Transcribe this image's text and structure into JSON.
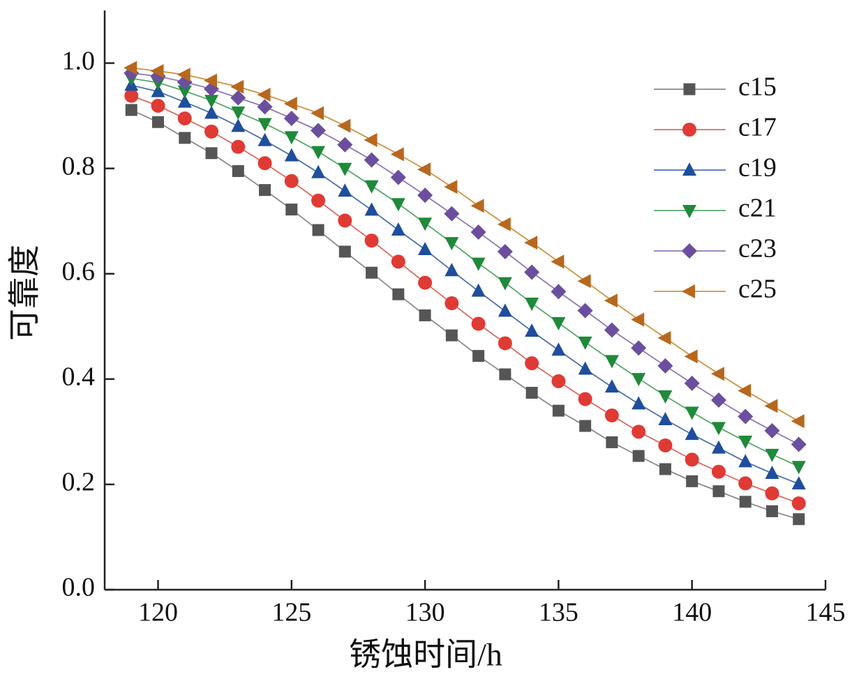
{
  "chart_data": {
    "type": "line",
    "x_label": "锈蚀时间/h",
    "y_label": "可靠度",
    "x": [
      119,
      120,
      121,
      122,
      123,
      124,
      125,
      126,
      127,
      128,
      129,
      130,
      131,
      132,
      133,
      134,
      135,
      136,
      137,
      138,
      139,
      140,
      141,
      142,
      143,
      144
    ],
    "xlim": [
      118,
      145
    ],
    "xticks": [
      120,
      125,
      130,
      135,
      140,
      145
    ],
    "ylim": [
      0,
      1.1
    ],
    "yticks": [
      {
        "value": 0,
        "label": "0.0"
      },
      0.2,
      0.4,
      0.6,
      0.8,
      {
        "value": 1,
        "label": "1.0"
      }
    ],
    "legend": "upper right",
    "series": [
      {
        "name": "c15",
        "color": "#555555",
        "line_color": "#8a8a8a",
        "marker": "square",
        "values": [
          0.911,
          0.888,
          0.858,
          0.829,
          0.795,
          0.759,
          0.722,
          0.683,
          0.642,
          0.602,
          0.561,
          0.521,
          0.483,
          0.444,
          0.409,
          0.374,
          0.34,
          0.311,
          0.28,
          0.254,
          0.229,
          0.206,
          0.187,
          0.167,
          0.149,
          0.134
        ]
      },
      {
        "name": "c17",
        "color": "#e03a35",
        "line_color": "#e06a60",
        "marker": "circle",
        "values": [
          0.938,
          0.919,
          0.895,
          0.87,
          0.841,
          0.81,
          0.776,
          0.739,
          0.701,
          0.663,
          0.623,
          0.583,
          0.544,
          0.505,
          0.468,
          0.43,
          0.396,
          0.362,
          0.331,
          0.3,
          0.274,
          0.247,
          0.224,
          0.202,
          0.183,
          0.164
        ]
      },
      {
        "name": "c19",
        "color": "#1f4e9c",
        "line_color": "#4a70b0",
        "marker": "triangle-up",
        "values": [
          0.958,
          0.946,
          0.926,
          0.905,
          0.88,
          0.853,
          0.824,
          0.792,
          0.757,
          0.721,
          0.683,
          0.646,
          0.606,
          0.567,
          0.529,
          0.491,
          0.455,
          0.419,
          0.385,
          0.353,
          0.323,
          0.295,
          0.269,
          0.243,
          0.221,
          0.201
        ]
      },
      {
        "name": "c21",
        "color": "#1f8a3a",
        "line_color": "#58a868",
        "marker": "triangle-down",
        "values": [
          0.971,
          0.963,
          0.947,
          0.929,
          0.907,
          0.885,
          0.86,
          0.832,
          0.8,
          0.767,
          0.733,
          0.696,
          0.659,
          0.62,
          0.583,
          0.544,
          0.507,
          0.47,
          0.435,
          0.401,
          0.368,
          0.337,
          0.308,
          0.282,
          0.257,
          0.234
        ]
      },
      {
        "name": "c23",
        "color": "#6b4f9e",
        "line_color": "#9078b8",
        "marker": "diamond",
        "values": [
          0.981,
          0.975,
          0.964,
          0.951,
          0.934,
          0.917,
          0.895,
          0.872,
          0.845,
          0.816,
          0.783,
          0.749,
          0.714,
          0.679,
          0.642,
          0.603,
          0.566,
          0.53,
          0.493,
          0.459,
          0.425,
          0.392,
          0.36,
          0.329,
          0.302,
          0.276
        ]
      },
      {
        "name": "c25",
        "color": "#b8671e",
        "line_color": "#d09040",
        "marker": "triangle-left",
        "values": [
          0.991,
          0.985,
          0.978,
          0.967,
          0.955,
          0.94,
          0.923,
          0.905,
          0.881,
          0.854,
          0.827,
          0.798,
          0.765,
          0.729,
          0.694,
          0.659,
          0.623,
          0.586,
          0.549,
          0.513,
          0.478,
          0.443,
          0.41,
          0.378,
          0.349,
          0.32
        ]
      }
    ]
  }
}
